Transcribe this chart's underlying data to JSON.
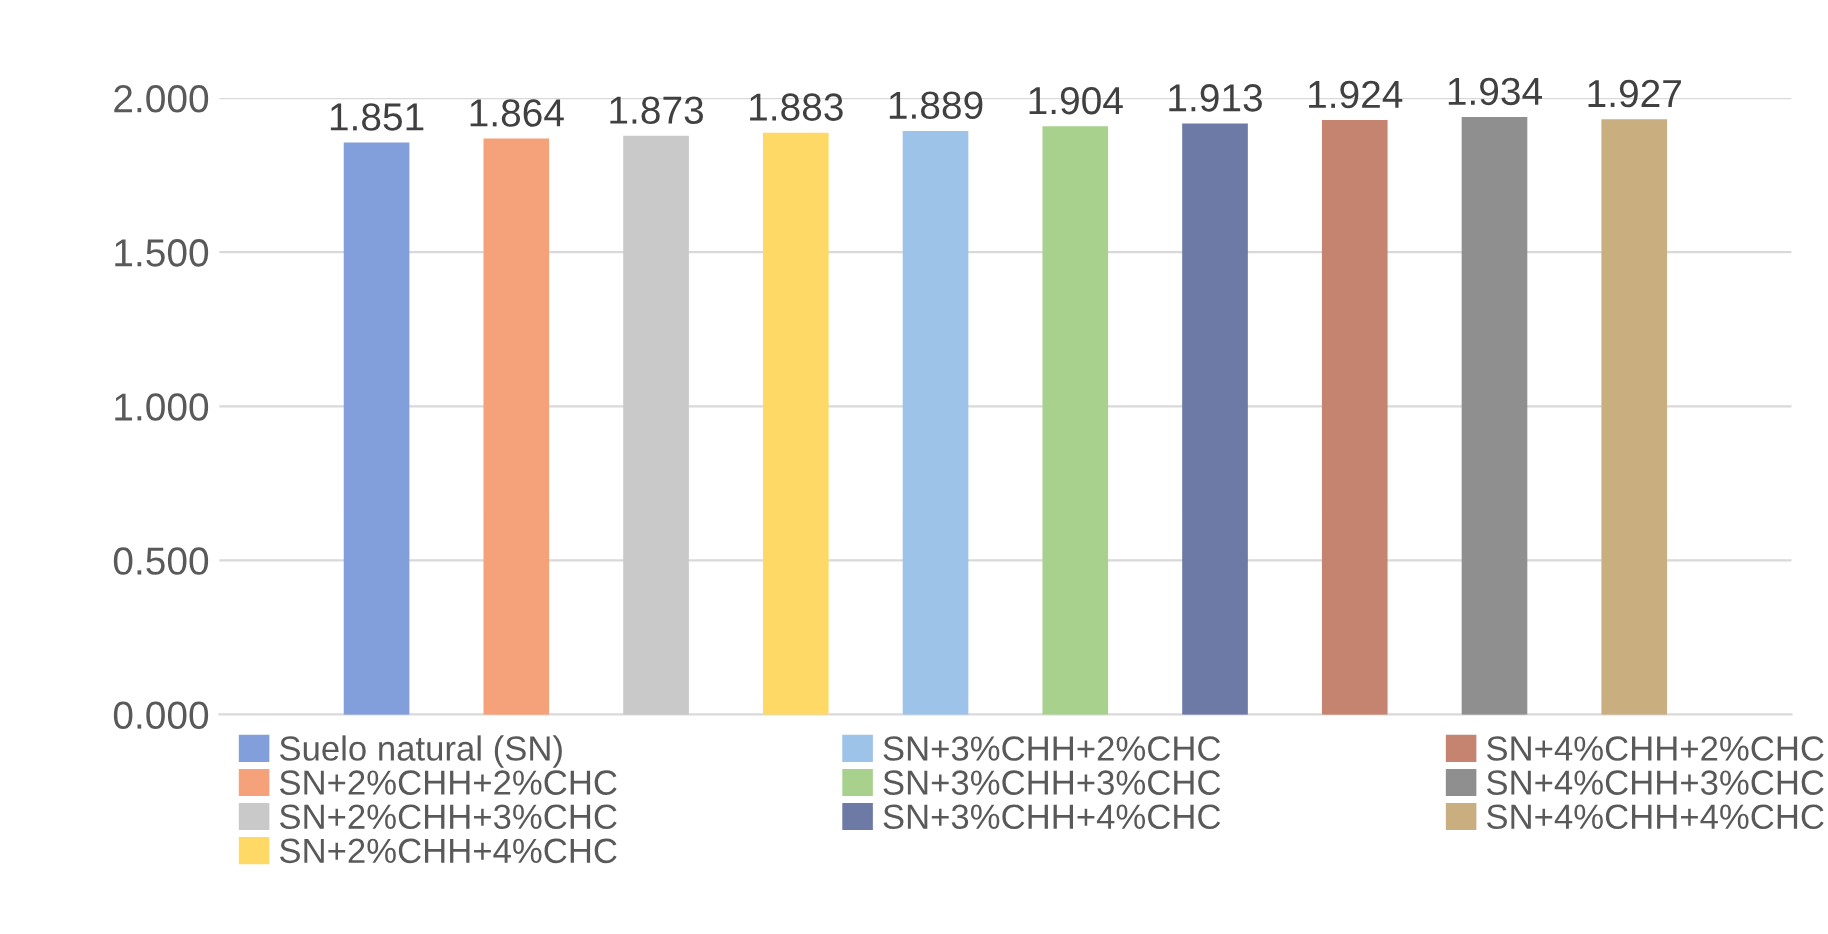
{
  "chart_data": {
    "type": "bar",
    "categories": [
      null
    ],
    "series": [
      {
        "name": "Suelo natural (SN)",
        "color": "#829fdb",
        "values": [
          1.851
        ]
      },
      {
        "name": "SN+2%CHH+2%CHC",
        "color": "#f5a179",
        "values": [
          1.864
        ]
      },
      {
        "name": "SN+2%CHH+3%CHC",
        "color": "#c9c9c9",
        "values": [
          1.873
        ]
      },
      {
        "name": "SN+2%CHH+4%CHC",
        "color": "#ffd966",
        "values": [
          1.883
        ]
      },
      {
        "name": "SN+3%CHH+2%CHC",
        "color": "#9dc3e9",
        "values": [
          1.889
        ]
      },
      {
        "name": "SN+3%CHH+3%CHC",
        "color": "#a9d18e",
        "values": [
          1.904
        ]
      },
      {
        "name": "SN+3%CHH+4%CHC",
        "color": "#6e7aa6",
        "values": [
          1.913
        ]
      },
      {
        "name": "SN+4%CHH+2%CHC",
        "color": "#c48470",
        "values": [
          1.924
        ]
      },
      {
        "name": "SN+4%CHH+3%CHC",
        "color": "#8f8f8f",
        "values": [
          1.934
        ]
      },
      {
        "name": "SN+4%CHH+4%CHC",
        "color": "#c9ae80",
        "values": [
          1.927
        ]
      }
    ],
    "ylim": [
      0,
      2.0
    ],
    "yticks": [
      {
        "value": 0,
        "label": "0.000"
      },
      {
        "value": 0.5,
        "label": "0.500"
      },
      {
        "value": 1.0,
        "label": "1.000"
      },
      {
        "value": 1.5,
        "label": "1.500"
      },
      {
        "value": 2.0,
        "label": "2.000"
      }
    ],
    "grid": "y",
    "legend": "bottom",
    "value_labels": [
      "1.851",
      "1.864",
      "1.873",
      "1.883",
      "1.889",
      "1.904",
      "1.913",
      "1.924",
      "1.934",
      "1.927"
    ]
  }
}
